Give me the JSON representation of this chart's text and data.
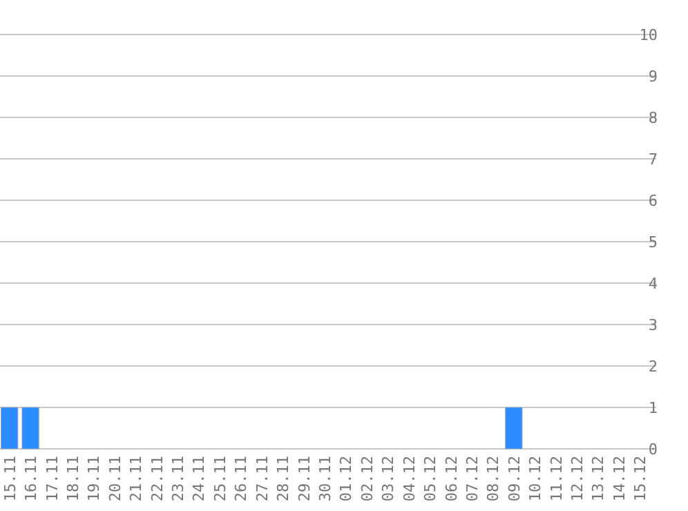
{
  "chart_data": {
    "type": "bar",
    "categories": [
      "15.11",
      "16.11",
      "17.11",
      "18.11",
      "19.11",
      "20.11",
      "21.11",
      "22.11",
      "23.11",
      "24.11",
      "25.11",
      "26.11",
      "27.11",
      "28.11",
      "29.11",
      "30.11",
      "01.12",
      "02.12",
      "03.12",
      "04.12",
      "05.12",
      "06.12",
      "07.12",
      "08.12",
      "09.12",
      "10.12",
      "11.12",
      "12.12",
      "13.12",
      "14.12",
      "15.12"
    ],
    "values": [
      1,
      1,
      0,
      0,
      0,
      0,
      0,
      0,
      0,
      0,
      0,
      0,
      0,
      0,
      0,
      0,
      0,
      0,
      0,
      0,
      0,
      0,
      0,
      0,
      1,
      0,
      0,
      0,
      0,
      0,
      0
    ],
    "color": "#2b8cff",
    "ylim": [
      0,
      10
    ],
    "yticks": [
      0,
      1,
      2,
      3,
      4,
      5,
      6,
      7,
      8,
      9,
      10
    ],
    "grid": "y"
  }
}
